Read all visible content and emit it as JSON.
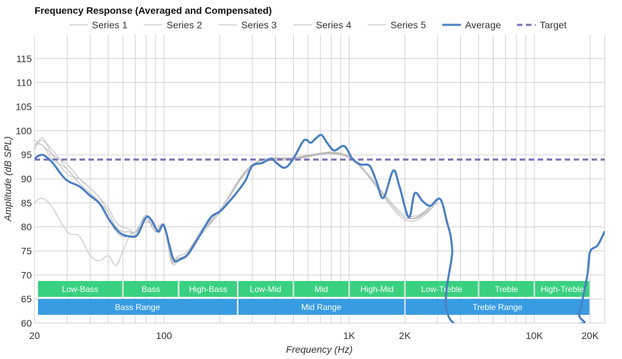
{
  "chart_data": {
    "type": "line",
    "title": "Frequency Response (Averaged and Compensated)",
    "xlabel": "Frequency (Hz)",
    "ylabel": "Amplitude (dB SPL)",
    "xscale": "log",
    "xlim": [
      20,
      24000
    ],
    "ylim": [
      60,
      120
    ],
    "grid": true,
    "legend_position": "top",
    "x_ticks": [
      {
        "v": 20,
        "label": "20"
      },
      {
        "v": 100,
        "label": "100"
      },
      {
        "v": 1000,
        "label": "1K"
      },
      {
        "v": 2000,
        "label": "2K"
      },
      {
        "v": 10000,
        "label": "10K"
      },
      {
        "v": 20000,
        "label": "20K"
      }
    ],
    "y_ticks": [
      60,
      65,
      70,
      75,
      80,
      85,
      90,
      95,
      100,
      105,
      110,
      115
    ],
    "colors": {
      "series": "#bbbbbb",
      "average": "#4a7fc1",
      "target": "#7772b3",
      "band": "#33cf7c",
      "range": "#3299e1"
    },
    "gray_x": [
      20,
      22,
      25,
      30,
      35,
      40,
      45,
      50,
      55,
      60,
      65,
      70,
      80,
      90,
      100,
      110,
      120,
      135,
      160,
      200,
      300,
      500,
      1000,
      2000,
      3000
    ],
    "series": [
      {
        "name": "Series 1",
        "values": [
          85,
          86,
          84,
          79,
          78,
          74,
          73,
          74,
          72,
          75,
          78,
          79,
          81,
          80,
          80,
          73,
          73.5,
          74.5,
          79,
          83,
          92.5,
          94,
          94.5,
          82,
          85
        ]
      },
      {
        "name": "Series 2",
        "values": [
          97,
          98,
          96,
          92,
          89,
          87,
          85,
          82,
          79,
          78,
          78,
          78.5,
          82.5,
          79.5,
          80,
          73.5,
          74,
          75,
          79,
          83.5,
          93,
          94.5,
          94.5,
          82.5,
          85.5
        ]
      },
      {
        "name": "Series 3",
        "values": [
          98,
          97,
          95,
          93,
          90,
          88,
          86,
          83,
          80,
          79,
          79,
          79,
          82,
          79,
          80,
          72.5,
          73,
          74,
          78.5,
          83,
          92.5,
          94,
          94.3,
          81.5,
          85
        ]
      },
      {
        "name": "Series 4",
        "values": [
          96,
          98.5,
          95,
          91,
          90,
          88,
          86,
          84,
          81,
          80,
          79.5,
          79,
          82,
          79,
          80.5,
          73,
          74,
          75,
          79.5,
          83.5,
          93,
          94.3,
          94.7,
          82,
          86
        ]
      },
      {
        "name": "Series 5",
        "values": [
          97,
          97,
          94,
          92,
          89,
          87,
          85,
          83,
          80,
          79,
          79,
          78.5,
          81.5,
          79,
          80,
          72.8,
          73.5,
          74.5,
          79,
          83,
          92.8,
          94.2,
          94.5,
          82,
          85.5
        ]
      }
    ],
    "average": {
      "name": "Average",
      "points": [
        [
          20,
          94.2
        ],
        [
          22,
          95
        ],
        [
          24.8,
          93.5
        ],
        [
          28.3,
          90.6
        ],
        [
          30.7,
          89.4
        ],
        [
          35,
          88.4
        ],
        [
          39.6,
          86.6
        ],
        [
          45,
          84.8
        ],
        [
          51,
          81.3
        ],
        [
          58,
          78.7
        ],
        [
          66,
          78
        ],
        [
          72,
          78.4
        ],
        [
          80,
          82
        ],
        [
          86,
          81.3
        ],
        [
          93,
          79
        ],
        [
          99.6,
          80.4
        ],
        [
          107,
          76.2
        ],
        [
          113.5,
          73
        ],
        [
          124,
          73.4
        ],
        [
          135,
          74.4
        ],
        [
          157,
          78.4
        ],
        [
          179,
          82
        ],
        [
          203,
          83.4
        ],
        [
          242,
          86.7
        ],
        [
          275,
          89.6
        ],
        [
          300,
          92.7
        ],
        [
          340,
          93.3
        ],
        [
          380,
          94.2
        ],
        [
          405,
          93.3
        ],
        [
          450,
          92.3
        ],
        [
          500,
          94.2
        ],
        [
          570,
          98
        ],
        [
          620,
          97.5
        ],
        [
          665,
          98.5
        ],
        [
          710,
          99.1
        ],
        [
          760,
          97.5
        ],
        [
          830,
          95.9
        ],
        [
          940,
          96.8
        ],
        [
          1040,
          94.2
        ],
        [
          1150,
          93
        ],
        [
          1290,
          92.7
        ],
        [
          1400,
          89.6
        ],
        [
          1530,
          86
        ],
        [
          1730,
          91.7
        ],
        [
          1870,
          88.4
        ],
        [
          2100,
          82
        ],
        [
          2260,
          87
        ],
        [
          2500,
          85.3
        ],
        [
          2750,
          84.4
        ],
        [
          3100,
          85.8
        ],
        [
          3360,
          81.3
        ],
        [
          3600,
          75.5
        ],
        [
          3750,
          50
        ],
        [
          16500,
          50
        ],
        [
          17500,
          62
        ],
        [
          19300,
          69.8
        ],
        [
          20000,
          74.8
        ],
        [
          22000,
          76.2
        ],
        [
          24000,
          79.1
        ]
      ]
    },
    "target": {
      "name": "Target",
      "value": 94
    },
    "bands": [
      {
        "label": "Low-Bass",
        "from": 20,
        "to": 60
      },
      {
        "label": "Bass",
        "from": 60,
        "to": 120
      },
      {
        "label": "High-Bass",
        "from": 120,
        "to": 250
      },
      {
        "label": "Low-Mid",
        "from": 250,
        "to": 500
      },
      {
        "label": "Mid",
        "from": 500,
        "to": 1000
      },
      {
        "label": "High-Mid",
        "from": 1000,
        "to": 2000
      },
      {
        "label": "Low-Treble",
        "from": 2000,
        "to": 5000
      },
      {
        "label": "Treble",
        "from": 5000,
        "to": 10000
      },
      {
        "label": "High-Treble",
        "from": 10000,
        "to": 20000
      }
    ],
    "ranges": [
      {
        "label": "Bass Range",
        "from": 20,
        "to": 250
      },
      {
        "label": "Mid Range",
        "from": 250,
        "to": 2000
      },
      {
        "label": "Treble Range",
        "from": 2000,
        "to": 20000
      }
    ]
  }
}
